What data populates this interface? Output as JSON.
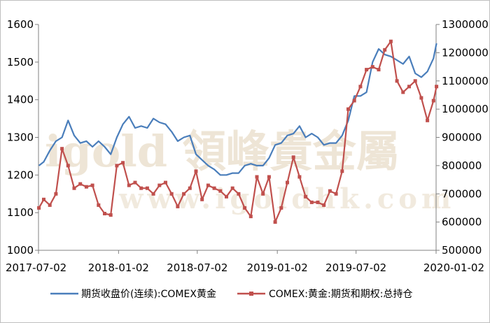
{
  "chart_data": {
    "type": "line",
    "x_tick_labels": [
      "2017-07-02",
      "2018-01-02",
      "2018-07-02",
      "2019-01-02",
      "2019-07-02",
      "2020-01-02"
    ],
    "xlim": [
      "2017-07-02",
      "2020-01-02"
    ],
    "y_left": {
      "ticks": [
        "1000",
        "1100",
        "1200",
        "1300",
        "1400",
        "1500",
        "1600"
      ],
      "ylim": [
        1000,
        1600
      ]
    },
    "y_right": {
      "ticks": [
        "500000",
        "600000",
        "700000",
        "800000",
        "900000",
        "1000000",
        "1100000",
        "1200000",
        "1300000"
      ],
      "ylim": [
        500000,
        1300000
      ]
    },
    "grid": false,
    "legend_position": "bottom",
    "watermark": "igold 領峰貴金屬",
    "watermark_url": "www.igoldhk.com",
    "series": [
      {
        "name": "期货收盘价(连续):COMEX黄金",
        "color": "#4a7ebb",
        "axis": "left",
        "x": [
          "2017-07-03",
          "2017-07-14",
          "2017-07-28",
          "2017-08-11",
          "2017-08-25",
          "2017-09-08",
          "2017-09-22",
          "2017-10-06",
          "2017-10-20",
          "2017-11-03",
          "2017-11-17",
          "2017-12-01",
          "2017-12-15",
          "2017-12-29",
          "2018-01-12",
          "2018-01-26",
          "2018-02-09",
          "2018-02-23",
          "2018-03-09",
          "2018-03-23",
          "2018-04-06",
          "2018-04-20",
          "2018-05-04",
          "2018-05-18",
          "2018-06-01",
          "2018-06-15",
          "2018-06-29",
          "2018-07-13",
          "2018-07-27",
          "2018-08-10",
          "2018-08-24",
          "2018-09-07",
          "2018-09-21",
          "2018-10-05",
          "2018-10-19",
          "2018-11-02",
          "2018-11-16",
          "2018-11-30",
          "2018-12-14",
          "2018-12-28",
          "2019-01-11",
          "2019-01-25",
          "2019-02-08",
          "2019-02-22",
          "2019-03-08",
          "2019-03-22",
          "2019-04-05",
          "2019-04-19",
          "2019-05-03",
          "2019-05-17",
          "2019-05-31",
          "2019-06-14",
          "2019-06-28",
          "2019-07-12",
          "2019-07-26",
          "2019-08-09",
          "2019-08-23",
          "2019-09-06",
          "2019-09-20",
          "2019-10-04",
          "2019-10-18",
          "2019-11-01",
          "2019-11-15",
          "2019-11-29",
          "2019-12-13",
          "2019-12-27",
          "2020-01-03"
        ],
        "values": [
          1225,
          1235,
          1265,
          1290,
          1300,
          1345,
          1305,
          1285,
          1290,
          1275,
          1290,
          1275,
          1255,
          1300,
          1335,
          1355,
          1325,
          1330,
          1325,
          1350,
          1340,
          1335,
          1315,
          1290,
          1300,
          1305,
          1255,
          1240,
          1225,
          1215,
          1200,
          1200,
          1205,
          1205,
          1225,
          1230,
          1225,
          1225,
          1245,
          1280,
          1285,
          1305,
          1310,
          1330,
          1300,
          1310,
          1300,
          1280,
          1285,
          1285,
          1305,
          1345,
          1410,
          1410,
          1420,
          1500,
          1535,
          1520,
          1515,
          1505,
          1495,
          1515,
          1470,
          1460,
          1475,
          1510,
          1550
        ]
      },
      {
        "name": "COMEX:黄金:期货和期权:总持仓",
        "color": "#c0504d",
        "axis": "right",
        "x": [
          "2017-07-03",
          "2017-07-14",
          "2017-07-28",
          "2017-08-11",
          "2017-08-25",
          "2017-09-08",
          "2017-09-22",
          "2017-10-06",
          "2017-10-20",
          "2017-11-03",
          "2017-11-17",
          "2017-12-01",
          "2017-12-15",
          "2017-12-29",
          "2018-01-12",
          "2018-01-26",
          "2018-02-09",
          "2018-02-23",
          "2018-03-09",
          "2018-03-23",
          "2018-04-06",
          "2018-04-20",
          "2018-05-04",
          "2018-05-18",
          "2018-06-01",
          "2018-06-15",
          "2018-06-29",
          "2018-07-13",
          "2018-07-27",
          "2018-08-10",
          "2018-08-24",
          "2018-09-07",
          "2018-09-21",
          "2018-10-05",
          "2018-10-19",
          "2018-11-02",
          "2018-11-16",
          "2018-11-30",
          "2018-12-14",
          "2018-12-28",
          "2019-01-11",
          "2019-01-25",
          "2019-02-08",
          "2019-02-22",
          "2019-03-08",
          "2019-03-22",
          "2019-04-05",
          "2019-04-19",
          "2019-05-03",
          "2019-05-17",
          "2019-05-31",
          "2019-06-14",
          "2019-06-28",
          "2019-07-12",
          "2019-07-26",
          "2019-08-09",
          "2019-08-23",
          "2019-09-06",
          "2019-09-20",
          "2019-10-04",
          "2019-10-18",
          "2019-11-01",
          "2019-11-15",
          "2019-11-29",
          "2019-12-13",
          "2019-12-27",
          "2020-01-03"
        ],
        "values": [
          650000,
          680000,
          660000,
          700000,
          860000,
          800000,
          720000,
          735000,
          725000,
          730000,
          660000,
          630000,
          625000,
          800000,
          810000,
          730000,
          740000,
          720000,
          720000,
          700000,
          730000,
          740000,
          700000,
          655000,
          700000,
          720000,
          780000,
          680000,
          730000,
          720000,
          710000,
          690000,
          720000,
          700000,
          650000,
          620000,
          760000,
          700000,
          760000,
          600000,
          650000,
          740000,
          830000,
          760000,
          690000,
          670000,
          670000,
          660000,
          710000,
          700000,
          780000,
          1000000,
          1030000,
          1080000,
          1140000,
          1150000,
          1140000,
          1210000,
          1240000,
          1100000,
          1060000,
          1080000,
          1100000,
          1040000,
          960000,
          1030000,
          1080000
        ]
      }
    ]
  }
}
